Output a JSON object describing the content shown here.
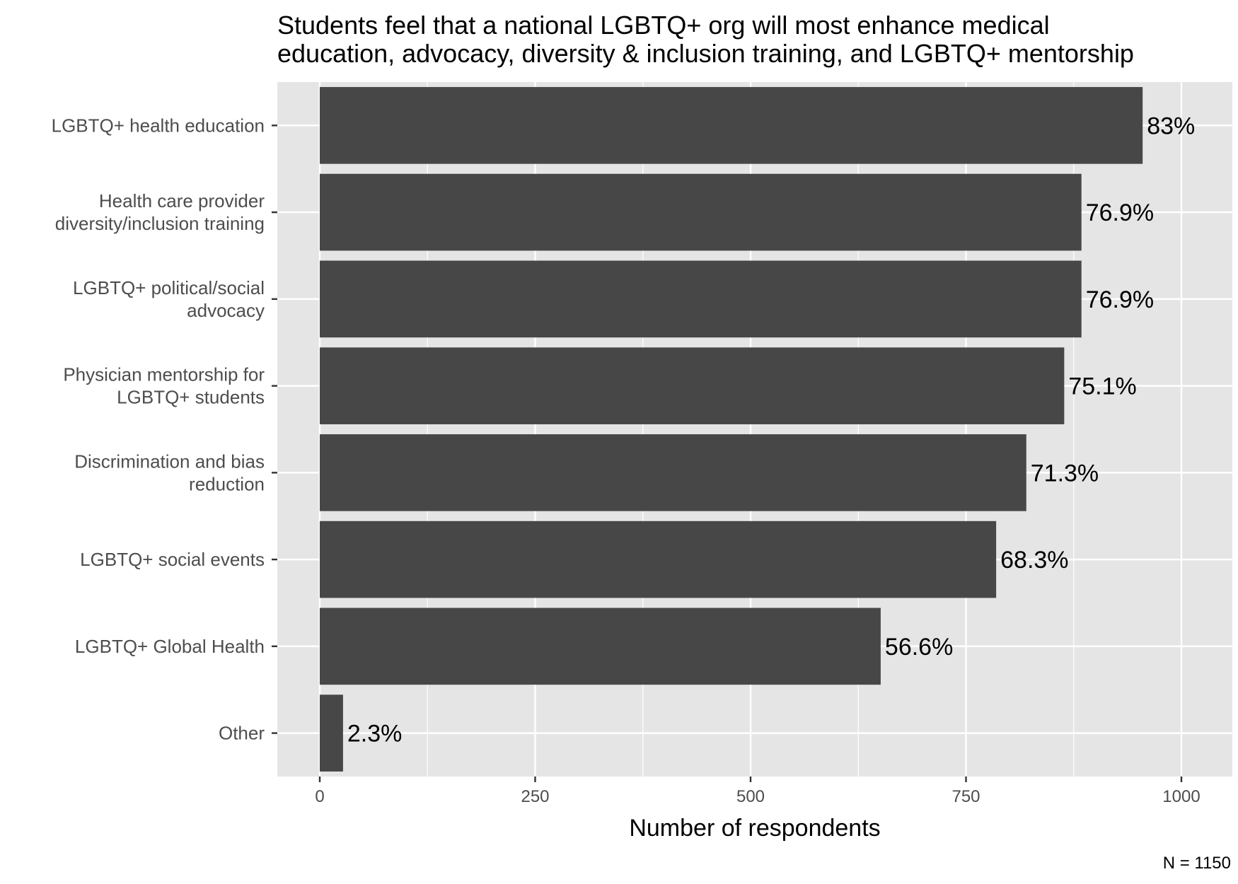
{
  "chart_data": {
    "type": "bar",
    "orientation": "horizontal",
    "title": [
      "Students feel that a national LGBTQ+ org will most enhance medical",
      "education, advocacy, diversity & inclusion training, and LGBTQ+ mentorship"
    ],
    "xlabel": "Number of respondents",
    "ylabel": "",
    "caption": "N = 1150",
    "xlim": [
      -50,
      1055
    ],
    "xticks": [
      0,
      250,
      500,
      750,
      1000
    ],
    "grid": true,
    "bar_color": "#474747",
    "panel_color": "#e5e5e5",
    "categories": [
      [
        "LGBTQ+ health education"
      ],
      [
        "Health care provider",
        "diversity/inclusion training"
      ],
      [
        "LGBTQ+ political/social",
        "advocacy"
      ],
      [
        "Physician mentorship for",
        "LGBTQ+ students"
      ],
      [
        "Discrimination and bias",
        "reduction"
      ],
      [
        "LGBTQ+ social events"
      ],
      [
        "LGBTQ+ Global Health"
      ],
      [
        "Other"
      ]
    ],
    "values": [
      955,
      884,
      884,
      864,
      820,
      785,
      651,
      27
    ],
    "labels": [
      "83%",
      "76.9%",
      "76.9%",
      "75.1%",
      "71.3%",
      "68.3%",
      "56.6%",
      "2.3%"
    ]
  }
}
